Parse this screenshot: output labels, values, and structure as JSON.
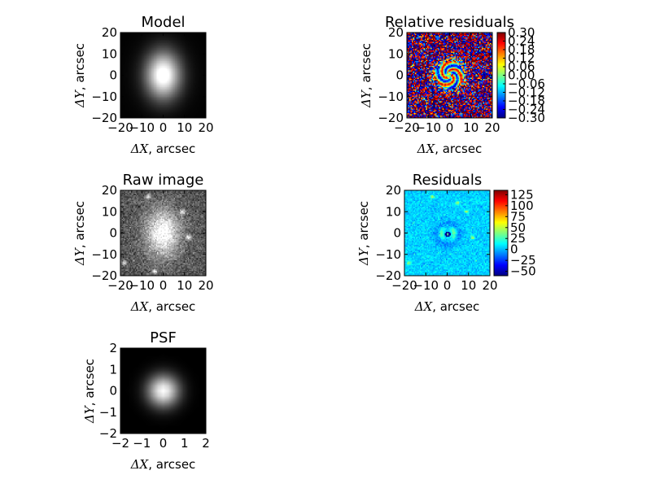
{
  "chart_data": [
    {
      "type": "heatmap",
      "title": "Model",
      "xlabel_symbol": "ΔX",
      "xlabel_unit": ", arcsec",
      "ylabel_symbol": "ΔY",
      "ylabel_unit": ", arcsec",
      "xlim": [
        -20,
        20
      ],
      "ylim": [
        -20,
        20
      ],
      "xticks": [
        "−20",
        "−10",
        "0",
        "10",
        "20"
      ],
      "yticks": [
        "20",
        "10",
        "0",
        "−10",
        "−20"
      ],
      "colormap": "gray",
      "source": {
        "cx": 0,
        "cy": 0,
        "sigma_x": 4.2,
        "sigma_y": 5.8,
        "peak": 1.0
      }
    },
    {
      "type": "heatmap",
      "title": "Relative residuals",
      "xlabel_symbol": "ΔX",
      "xlabel_unit": ", arcsec",
      "ylabel_symbol": "ΔY",
      "ylabel_unit": ", arcsec",
      "xlim": [
        -20,
        20
      ],
      "ylim": [
        -20,
        20
      ],
      "xticks": [
        "−20",
        "−10",
        "0",
        "10",
        "20"
      ],
      "yticks": [
        "20",
        "10",
        "0",
        "−10",
        "−20"
      ],
      "colormap": "jet",
      "colorbar": {
        "ticks": [
          "0.30",
          "0.24",
          "0.18",
          "0.12",
          "0.06",
          "0.00",
          "−0.06",
          "−0.12",
          "−0.18",
          "−0.24",
          "−0.30"
        ],
        "range": [
          -0.3,
          0.3
        ]
      }
    },
    {
      "type": "heatmap",
      "title": "Raw image",
      "xlabel_symbol": "ΔX",
      "xlabel_unit": ", arcsec",
      "ylabel_symbol": "ΔY",
      "ylabel_unit": ", arcsec",
      "xlim": [
        -20,
        20
      ],
      "ylim": [
        -20,
        20
      ],
      "xticks": [
        "−20",
        "−10",
        "0",
        "10",
        "20"
      ],
      "yticks": [
        "20",
        "10",
        "0",
        "−10",
        "−20"
      ],
      "colormap": "gray",
      "source": {
        "cx": 0,
        "cy": 0,
        "sigma_x": 4.2,
        "sigma_y": 5.8,
        "peak": 1.0
      },
      "stars": [
        [
          -7,
          17
        ],
        [
          -18,
          -14
        ],
        [
          12,
          -2
        ],
        [
          9,
          10
        ],
        [
          -4,
          -18
        ]
      ]
    },
    {
      "type": "heatmap",
      "title": "Residuals",
      "xlabel_symbol": "ΔX",
      "xlabel_unit": ", arcsec",
      "ylabel_symbol": "ΔY",
      "ylabel_unit": ", arcsec",
      "xlim": [
        -20,
        20
      ],
      "ylim": [
        -20,
        20
      ],
      "xticks": [
        "−20",
        "−10",
        "0",
        "10",
        "20"
      ],
      "yticks": [
        "20",
        "10",
        "0",
        "−10",
        "−20"
      ],
      "colormap": "jet",
      "colorbar": {
        "ticks": [
          "125",
          "100",
          "75",
          "50",
          "25",
          "0",
          "−25",
          "−50"
        ],
        "range": [
          -60,
          135
        ]
      }
    },
    {
      "type": "heatmap",
      "title": "PSF",
      "xlabel_symbol": "ΔX",
      "xlabel_unit": ", arcsec",
      "ylabel_symbol": "ΔY",
      "ylabel_unit": ", arcsec",
      "xlim": [
        -2,
        2
      ],
      "ylim": [
        -2,
        2
      ],
      "xticks": [
        "−2",
        "−1",
        "0",
        "1",
        "2"
      ],
      "yticks": [
        "2",
        "1",
        "0",
        "−1",
        "−2"
      ],
      "colormap": "gray",
      "source": {
        "cx": 0,
        "cy": 0,
        "sigma_x": 0.45,
        "sigma_y": 0.45,
        "peak": 1.0
      }
    }
  ]
}
